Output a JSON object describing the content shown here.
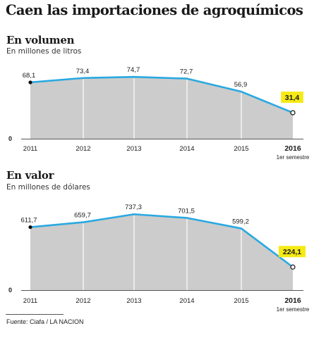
{
  "header": {
    "title": "Caen las importaciones de agroquímicos"
  },
  "chart_data": [
    {
      "type": "area",
      "title": "En volumen",
      "subtitle": "En millones de litros",
      "categories": [
        "2011",
        "2012",
        "2013",
        "2014",
        "2015",
        "2016"
      ],
      "values": [
        68.1,
        73.4,
        74.7,
        72.7,
        56.9,
        31.4
      ],
      "value_labels": [
        "68,1",
        "73,4",
        "74,7",
        "72,7",
        "56,9",
        "31,4"
      ],
      "last_category_note": "1er semestre",
      "zero_label": "0",
      "highlight_last": true
    },
    {
      "type": "area",
      "title": "En valor",
      "subtitle": "En millones de dólares",
      "categories": [
        "2011",
        "2012",
        "2013",
        "2014",
        "2015",
        "2016"
      ],
      "values": [
        611.7,
        659.7,
        737.3,
        701.5,
        599.2,
        224.1
      ],
      "value_labels": [
        "611,7",
        "659,7",
        "737,3",
        "701,5",
        "599,2",
        "224,1"
      ],
      "last_category_note": "1er semestre",
      "zero_label": "0",
      "highlight_last": true
    }
  ],
  "colors": {
    "area_fill": "#cccccc",
    "line": "#29a9e1",
    "highlight": "#f5ea14",
    "text": "#1a1a1a"
  },
  "footer": {
    "source": "Fuente: Ciafa / LA NACION"
  }
}
